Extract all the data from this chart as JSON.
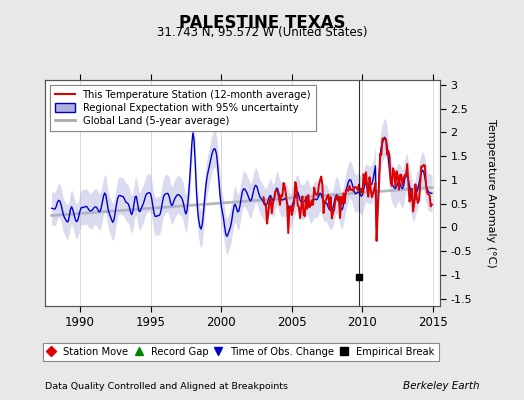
{
  "title": "PALESTINE TEXAS",
  "subtitle": "31.743 N, 95.572 W (United States)",
  "ylabel": "Temperature Anomaly (°C)",
  "xlabel_left": "Data Quality Controlled and Aligned at Breakpoints",
  "xlabel_right": "Berkeley Earth",
  "xlim": [
    1987.5,
    2015.5
  ],
  "ylim": [
    -1.65,
    3.1
  ],
  "yticks": [
    -1.5,
    -1.0,
    -0.5,
    0.0,
    0.5,
    1.0,
    1.5,
    2.0,
    2.5,
    3.0
  ],
  "xticks": [
    1990,
    1995,
    2000,
    2005,
    2010,
    2015
  ],
  "background_color": "#e8e8e8",
  "plot_bg_color": "#ffffff",
  "grid_color": "#cccccc",
  "red_line_color": "#dd0000",
  "blue_line_color": "#0000cc",
  "blue_fill_color": "#b0b0dd",
  "gray_line_color": "#aaaaaa",
  "empirical_break_year": 2009.75,
  "empirical_break_y": -1.05,
  "legend_items": [
    {
      "label": "This Temperature Station (12-month average)",
      "color": "#dd0000",
      "lw": 1.5
    },
    {
      "label": "Regional Expectation with 95% uncertainty",
      "color": "#0000cc",
      "lw": 1.5
    },
    {
      "label": "Global Land (5-year average)",
      "color": "#aaaaaa",
      "lw": 2.0
    }
  ],
  "marker_legend": [
    {
      "label": "Station Move",
      "marker": "D",
      "color": "#dd0000"
    },
    {
      "label": "Record Gap",
      "marker": "^",
      "color": "#008800"
    },
    {
      "label": "Time of Obs. Change",
      "marker": "v",
      "color": "#0000cc"
    },
    {
      "label": "Empirical Break",
      "marker": "s",
      "color": "#000000"
    }
  ]
}
